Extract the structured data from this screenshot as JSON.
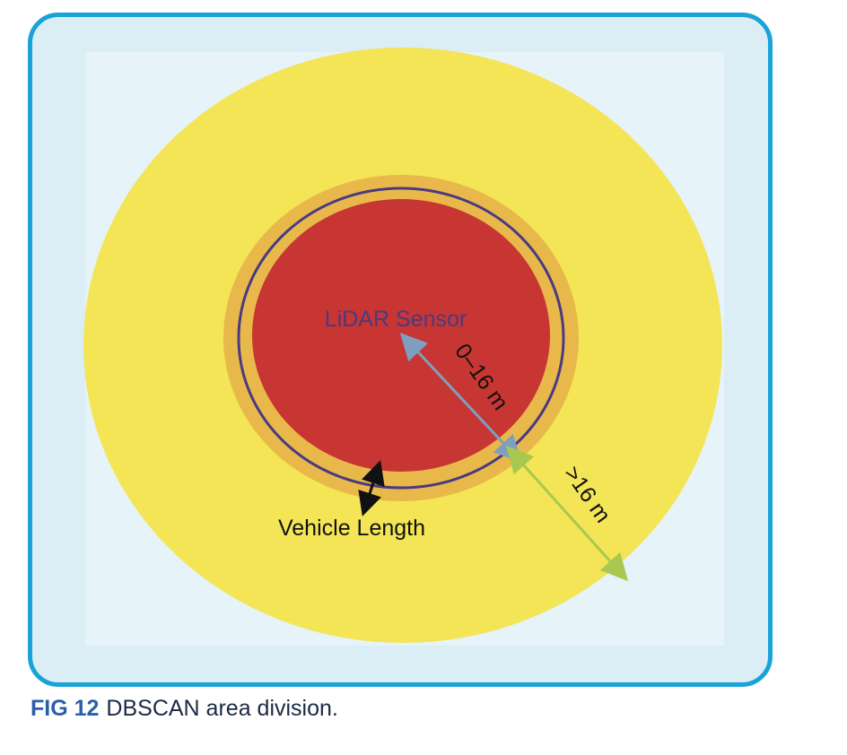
{
  "diagram": {
    "sensor_label": "LiDAR Sensor",
    "inner_range_label": "0–16 m",
    "outer_range_label": ">16 m",
    "vehicle_length_label": "Vehicle Length",
    "colors": {
      "frame_border": "#1aa3d8",
      "background": "#dbeef5",
      "outer_zone": "#f3e556",
      "buffer_ring": "#e8b94a",
      "inner_zone": "#c73632",
      "boundary_line": "#4a3a82",
      "inner_arrow": "#7f9fc0",
      "outer_arrow": "#a8c850"
    }
  },
  "caption": {
    "label": "FIG 12",
    "text": "DBSCAN area division."
  }
}
